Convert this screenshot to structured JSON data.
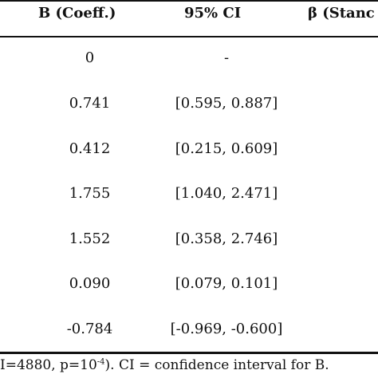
{
  "table": {
    "headers": {
      "coeff": "B (Coeff.)",
      "ci": "95% CI",
      "beta": "β (Stanc"
    },
    "rows": [
      {
        "b": "0",
        "ci": "-"
      },
      {
        "b": "0.741",
        "ci": "[0.595, 0.887]"
      },
      {
        "b": "0.412",
        "ci": "[0.215, 0.609]"
      },
      {
        "b": "1.755",
        "ci": "[1.040, 2.471]"
      },
      {
        "b": "1.552",
        "ci": "[0.358, 2.746]"
      },
      {
        "b": "0.090",
        "ci": "[0.079, 0.101]"
      },
      {
        "b": "-0.784",
        "ci": "[-0.969, -0.600]"
      }
    ]
  },
  "footnote": {
    "pre": "I=4880, p=10",
    "exp": "-4",
    "post": "). CI = confidence interval for B."
  }
}
